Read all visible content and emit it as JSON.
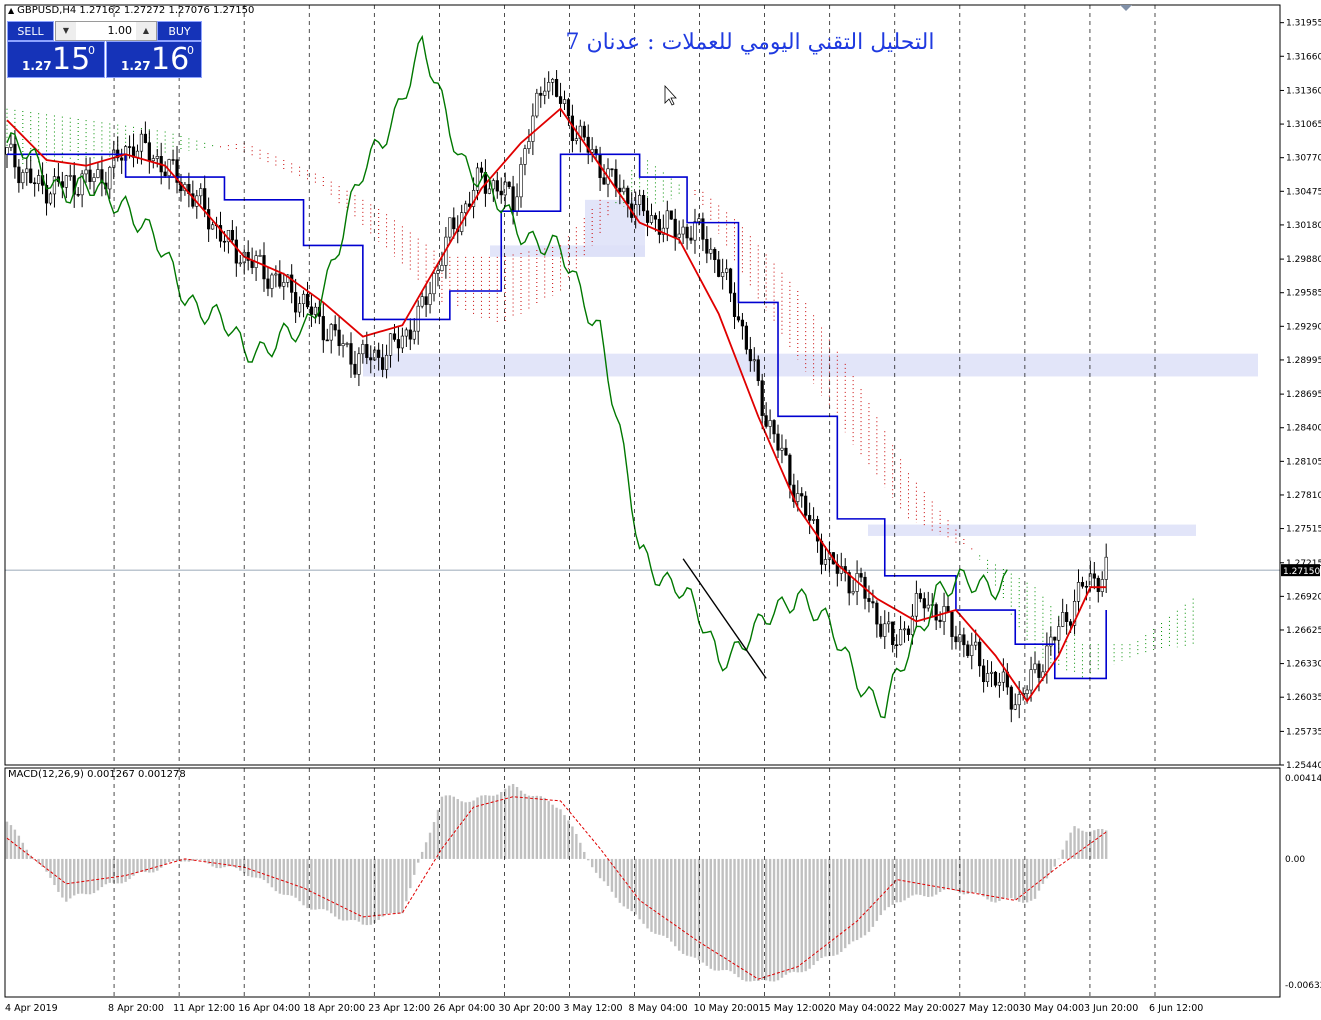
{
  "header": {
    "symbol_line": "GBPUSD,H4  1.27162 1.27272 1.27076 1.27150",
    "title": "التحليل التقني اليومي للعملات : عدنان 7"
  },
  "trade_panel": {
    "sell_label": "SELL",
    "buy_label": "BUY",
    "lot_value": "1.00",
    "sell_price_small": "1.27",
    "sell_price_big": "15",
    "sell_price_sup": "0",
    "buy_price_small": "1.27",
    "buy_price_big": "16",
    "buy_price_sup": "0"
  },
  "colors": {
    "tenkan": "#e00000",
    "kijun": "#0000d0",
    "chikou": "#007800",
    "cloud_bear": "#c80000",
    "cloud_bull": "#009000",
    "zone": "#dde0f8",
    "macd_hist": "#c0c0c0",
    "macd_signal": "#e00000",
    "candle": "#000000",
    "grid": "#000000"
  },
  "chart_data": [
    {
      "type": "candlestick",
      "title": "",
      "ylabel": "",
      "ylim": [
        1.2544,
        1.3211
      ],
      "price_ticks": [
        "1.31955",
        "1.31660",
        "1.31360",
        "1.31065",
        "1.30770",
        "1.30475",
        "1.30180",
        "1.29880",
        "1.29585",
        "1.29290",
        "1.28995",
        "1.28695",
        "1.28400",
        "1.28105",
        "1.27810",
        "1.27515",
        "1.27215",
        "1.26920",
        "1.26625",
        "1.26330",
        "1.26035",
        "1.25735",
        "1.25440"
      ],
      "current_price": "1.27150",
      "time_labels": [
        "4 Apr 2019",
        "8 Apr 20:00",
        "11 Apr 12:00",
        "16 Apr 04:00",
        "18 Apr 20:00",
        "23 Apr 12:00",
        "26 Apr 04:00",
        "30 Apr 20:00",
        "3 May 12:00",
        "8 May 04:00",
        "10 May 20:00",
        "15 May 12:00",
        "20 May 04:00",
        "22 May 20:00",
        "27 May 12:00",
        "30 May 04:00",
        "3 Jun 20:00",
        "6 Jun 12:00"
      ],
      "series_points": {
        "close": [
          [
            0,
            1.308
          ],
          [
            8,
            1.305
          ],
          [
            16,
            1.3055
          ],
          [
            24,
            1.306
          ],
          [
            32,
            1.309
          ],
          [
            40,
            1.307
          ],
          [
            48,
            1.304
          ],
          [
            56,
            1.3
          ],
          [
            64,
            1.298
          ],
          [
            72,
            1.296
          ],
          [
            80,
            1.293
          ],
          [
            88,
            1.29
          ],
          [
            96,
            1.2905
          ],
          [
            104,
            1.2935
          ],
          [
            112,
            1.301
          ],
          [
            120,
            1.306
          ],
          [
            128,
            1.304
          ],
          [
            136,
            1.315
          ],
          [
            144,
            1.31
          ],
          [
            152,
            1.306
          ],
          [
            160,
            1.303
          ],
          [
            168,
            1.3015
          ],
          [
            176,
            1.301
          ],
          [
            184,
            1.295
          ],
          [
            192,
            1.285
          ],
          [
            200,
            1.278
          ],
          [
            208,
            1.272
          ],
          [
            216,
            1.27
          ],
          [
            224,
            1.265
          ],
          [
            232,
            1.269
          ],
          [
            240,
            1.266
          ],
          [
            248,
            1.2625
          ],
          [
            256,
            1.26
          ],
          [
            264,
            1.265
          ],
          [
            272,
            1.27
          ],
          [
            278,
            1.2715
          ]
        ],
        "tenkan": [
          [
            0,
            1.311
          ],
          [
            10,
            1.3075
          ],
          [
            20,
            1.307
          ],
          [
            30,
            1.308
          ],
          [
            40,
            1.307
          ],
          [
            50,
            1.303
          ],
          [
            60,
            1.299
          ],
          [
            70,
            1.2975
          ],
          [
            80,
            1.295
          ],
          [
            90,
            1.292
          ],
          [
            100,
            1.293
          ],
          [
            110,
            1.299
          ],
          [
            120,
            1.305
          ],
          [
            130,
            1.309
          ],
          [
            140,
            1.312
          ],
          [
            150,
            1.307
          ],
          [
            160,
            1.302
          ],
          [
            170,
            1.3005
          ],
          [
            180,
            1.294
          ],
          [
            190,
            1.285
          ],
          [
            200,
            1.277
          ],
          [
            210,
            1.272
          ],
          [
            220,
            1.269
          ],
          [
            230,
            1.267
          ],
          [
            240,
            1.268
          ],
          [
            250,
            1.264
          ],
          [
            258,
            1.26
          ],
          [
            266,
            1.264
          ],
          [
            274,
            1.27
          ],
          [
            278,
            1.27
          ]
        ],
        "kijun": [
          [
            0,
            1.308
          ],
          [
            30,
            1.306
          ],
          [
            55,
            1.304
          ],
          [
            75,
            1.3
          ],
          [
            90,
            1.2935
          ],
          [
            105,
            1.2935
          ],
          [
            112,
            1.296
          ],
          [
            125,
            1.303
          ],
          [
            140,
            1.308
          ],
          [
            160,
            1.306
          ],
          [
            172,
            1.302
          ],
          [
            185,
            1.295
          ],
          [
            195,
            1.285
          ],
          [
            210,
            1.276
          ],
          [
            222,
            1.271
          ],
          [
            240,
            1.268
          ],
          [
            255,
            1.265
          ],
          [
            265,
            1.262
          ],
          [
            278,
            1.268
          ]
        ],
        "chikou": [
          [
            0,
            1.309
          ],
          [
            15,
            1.305
          ],
          [
            30,
            1.304
          ],
          [
            45,
            1.296
          ],
          [
            60,
            1.291
          ],
          [
            75,
            1.292
          ],
          [
            90,
            1.306
          ],
          [
            105,
            1.317
          ],
          [
            115,
            1.308
          ],
          [
            125,
            1.303
          ],
          [
            140,
            1.299
          ],
          [
            150,
            1.293
          ],
          [
            160,
            1.273
          ],
          [
            170,
            1.27
          ],
          [
            180,
            1.264
          ],
          [
            190,
            1.266
          ],
          [
            200,
            1.27
          ],
          [
            210,
            1.265
          ],
          [
            222,
            1.259
          ],
          [
            235,
            1.27
          ],
          [
            245,
            1.27
          ],
          [
            253,
            1.271
          ]
        ]
      }
    },
    {
      "type": "bar",
      "title": "MACD(12,26,9) 0.001267 0.001278",
      "ylim": [
        -0.006325,
        0.004146
      ],
      "y_ticks": [
        "0.004146",
        "0.00",
        "-0.006325"
      ],
      "histogram": [
        [
          0,
          0.0018
        ],
        [
          15,
          -0.002
        ],
        [
          30,
          -0.001
        ],
        [
          45,
          0.0
        ],
        [
          60,
          -0.0006
        ],
        [
          75,
          -0.0022
        ],
        [
          90,
          -0.0032
        ],
        [
          100,
          -0.0025
        ],
        [
          110,
          0.003
        ],
        [
          118,
          0.0028
        ],
        [
          128,
          0.0035
        ],
        [
          140,
          0.0025
        ],
        [
          150,
          -0.001
        ],
        [
          160,
          -0.003
        ],
        [
          175,
          -0.005
        ],
        [
          190,
          -0.006
        ],
        [
          200,
          -0.0055
        ],
        [
          215,
          -0.004
        ],
        [
          225,
          -0.002
        ],
        [
          240,
          -0.0015
        ],
        [
          250,
          -0.002
        ],
        [
          260,
          -0.002
        ],
        [
          270,
          0.0015
        ],
        [
          278,
          0.0013
        ]
      ],
      "signal": [
        [
          0,
          0.001
        ],
        [
          15,
          -0.0012
        ],
        [
          30,
          -0.0008
        ],
        [
          45,
          0.0
        ],
        [
          60,
          -0.0004
        ],
        [
          75,
          -0.0014
        ],
        [
          90,
          -0.0028
        ],
        [
          100,
          -0.0026
        ],
        [
          110,
          0.0005
        ],
        [
          118,
          0.0025
        ],
        [
          128,
          0.003
        ],
        [
          140,
          0.0028
        ],
        [
          150,
          0.0005
        ],
        [
          160,
          -0.002
        ],
        [
          175,
          -0.004
        ],
        [
          190,
          -0.0058
        ],
        [
          200,
          -0.0052
        ],
        [
          215,
          -0.003
        ],
        [
          225,
          -0.001
        ],
        [
          240,
          -0.0015
        ],
        [
          255,
          -0.002
        ],
        [
          265,
          -0.0005
        ],
        [
          278,
          0.0013
        ]
      ]
    }
  ]
}
